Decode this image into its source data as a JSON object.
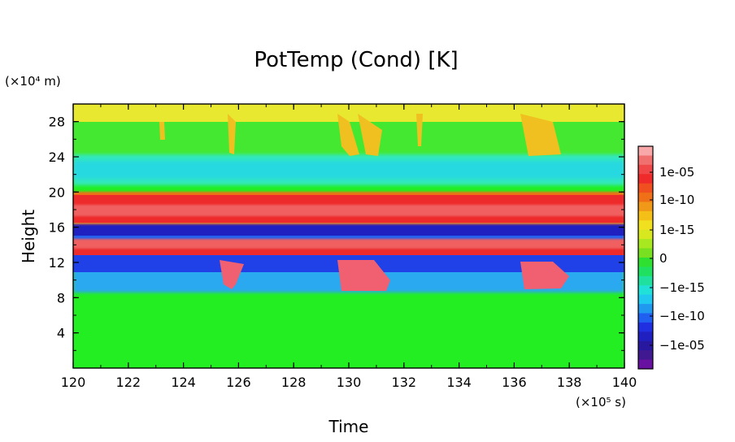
{
  "chart_data": {
    "type": "heatmap",
    "title": "PotTemp (Cond) [K]",
    "xlabel": "Time",
    "ylabel": "Height",
    "x_unit": "(×10⁵ s)",
    "y_unit": "(×10⁴ m)",
    "xlim": [
      120,
      140
    ],
    "ylim": [
      0,
      30
    ],
    "x_ticks": [
      "120",
      "122",
      "124",
      "126",
      "128",
      "130",
      "132",
      "134",
      "136",
      "138",
      "140"
    ],
    "y_ticks": [
      "4",
      "8",
      "12",
      "16",
      "20",
      "24",
      "28"
    ],
    "colorbar": {
      "labels": [
        "1e-05",
        "1e-10",
        "1e-15",
        "0",
        "−1e-15",
        "−1e-10",
        "−1e-05"
      ],
      "colors_top_to_bottom": [
        "#f8a8a8",
        "#f07070",
        "#f04848",
        "#ee2a2a",
        "#f05020",
        "#f07018",
        "#f09818",
        "#f4c018",
        "#f0e020",
        "#d8e820",
        "#a8e820",
        "#78e020",
        "#30e030",
        "#20e060",
        "#20e0a0",
        "#20e0d8",
        "#20c8f0",
        "#2098f0",
        "#2060f0",
        "#2030e0",
        "#2020c0",
        "#2818a0",
        "#401890",
        "#6810a0"
      ]
    },
    "layers": [
      {
        "from": 0,
        "to": 9,
        "value": "0"
      },
      {
        "from": 8,
        "to": 11.5,
        "value": "-1e-10 to -1e-05 (patchy)"
      },
      {
        "from": 11.5,
        "to": 13,
        "value": "-1e-05"
      },
      {
        "from": 13,
        "to": 15.5,
        "value": "1e-05 to 1e-10"
      },
      {
        "from": 15.5,
        "to": 16.5,
        "value": "-1e-05"
      },
      {
        "from": 16.5,
        "to": 19.5,
        "value": "1e-05 to 1e-10"
      },
      {
        "from": 19.5,
        "to": 25,
        "value": "-1e-15 to 0"
      },
      {
        "from": 25,
        "to": 30,
        "value": "0 to 1e-15"
      }
    ]
  }
}
